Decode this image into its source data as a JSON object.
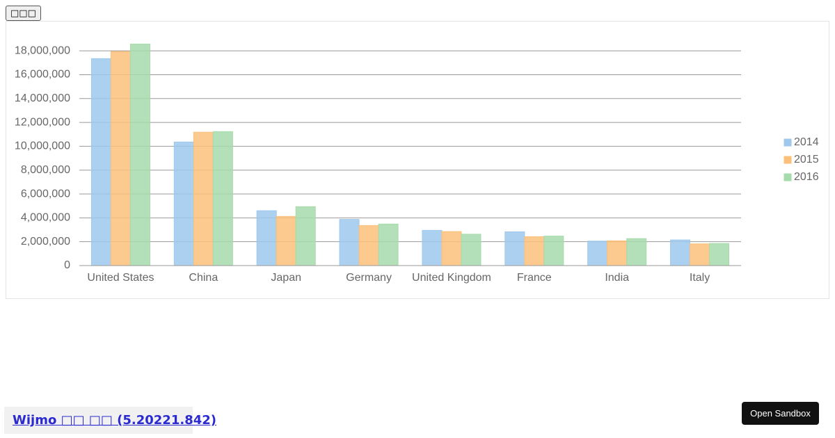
{
  "toolbar": {
    "button": "□□□"
  },
  "chart_data": {
    "type": "bar",
    "categories": [
      "United States",
      "China",
      "Japan",
      "Germany",
      "United Kingdom",
      "France",
      "India",
      "Italy"
    ],
    "series": [
      {
        "name": "2014",
        "color": "#9ec8ec",
        "values": [
          17350000,
          10360000,
          4600000,
          3870000,
          2950000,
          2830000,
          2050000,
          2150000
        ]
      },
      {
        "name": "2015",
        "color": "#fcc07a",
        "values": [
          17950000,
          11180000,
          4120000,
          3360000,
          2850000,
          2420000,
          2070000,
          1820000
        ]
      },
      {
        "name": "2016",
        "color": "#a6dbab",
        "values": [
          18570000,
          11230000,
          4940000,
          3480000,
          2630000,
          2470000,
          2260000,
          1850000
        ]
      }
    ],
    "ylim": [
      0,
      19000000
    ],
    "yticks": [
      0,
      {
        "value": 2000000,
        "label": "2,000,000"
      },
      {
        "value": 4000000,
        "label": "4,000,000"
      },
      {
        "value": 6000000,
        "label": "6,000,000"
      },
      {
        "value": 8000000,
        "label": "8,000,000"
      },
      {
        "value": 10000000,
        "label": "10,000,000"
      },
      {
        "value": 12000000,
        "label": "12,000,000"
      },
      {
        "value": 14000000,
        "label": "14,000,000"
      },
      {
        "value": 16000000,
        "label": "16,000,000"
      },
      {
        "value": 18000000,
        "label": "18,000,000"
      }
    ],
    "grid": true,
    "legend": "right"
  },
  "footer": {
    "link": "Wijmo □□ □□ (5.20221.842)",
    "sandbox": "Open Sandbox"
  }
}
